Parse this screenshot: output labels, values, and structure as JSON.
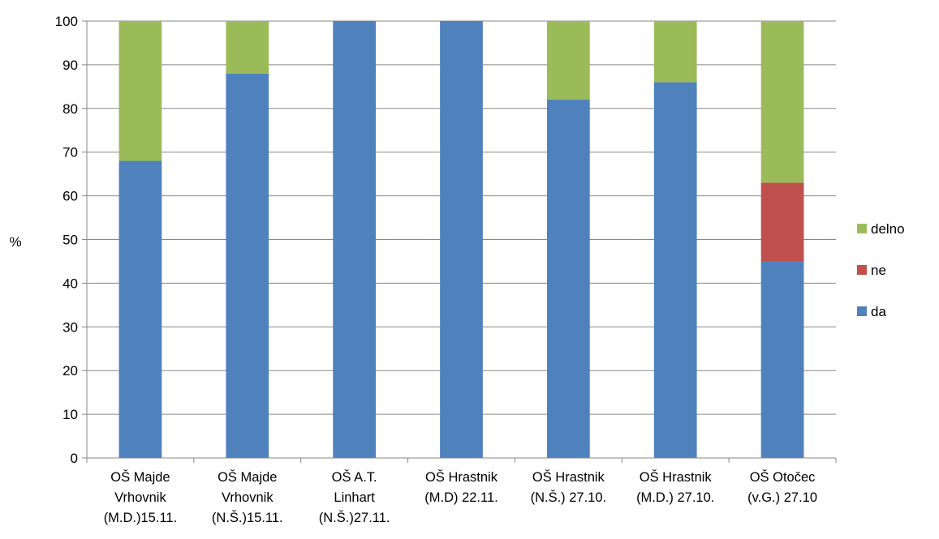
{
  "chart_data": {
    "type": "bar",
    "stacked": true,
    "title": "",
    "xlabel": "",
    "ylabel": "%",
    "ylim": [
      0,
      100
    ],
    "yticks": [
      0,
      10,
      20,
      30,
      40,
      50,
      60,
      70,
      80,
      90,
      100
    ],
    "grid": true,
    "legend_position": "right",
    "categories": [
      [
        "OŠ  Majde",
        "Vrhovnik",
        "(M.D.)15.11."
      ],
      [
        "OŠ  Majde",
        "Vrhovnik",
        "(N.Š.)15.11."
      ],
      [
        "OŠ  A.T.",
        "Linhart",
        "(N.Š.)27.11."
      ],
      [
        "OŠ Hrastnik",
        "(M.D) 22.11."
      ],
      [
        "OŠ Hrastnik",
        "(N.Š.) 27.10."
      ],
      [
        "OŠ Hrastnik",
        "(M.D.) 27.10."
      ],
      [
        "OŠ Otočec",
        "(v.G.) 27.10"
      ]
    ],
    "series": [
      {
        "name": "da",
        "color": "#4f81bd",
        "values": [
          68,
          88,
          100,
          100,
          82,
          86,
          45
        ]
      },
      {
        "name": "ne",
        "color": "#c0504d",
        "values": [
          0,
          0,
          0,
          0,
          0,
          0,
          18
        ]
      },
      {
        "name": "delno",
        "color": "#9bbb59",
        "values": [
          32,
          12,
          0,
          0,
          18,
          14,
          37
        ]
      }
    ],
    "legend_order": [
      "delno",
      "ne",
      "da"
    ]
  }
}
